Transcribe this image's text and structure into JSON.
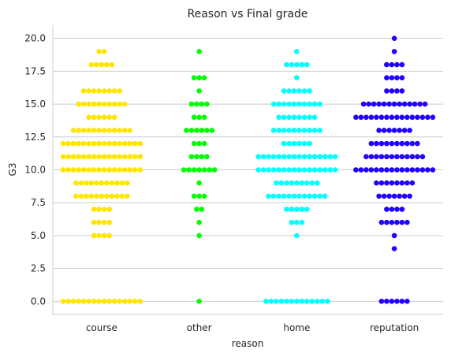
{
  "chart_data": {
    "type": "swarm",
    "title": "Reason vs Final grade",
    "xlabel": "reason",
    "ylabel": "G3",
    "ylim": [
      -1,
      21
    ],
    "yticks": [
      "0.0",
      "2.5",
      "5.0",
      "7.5",
      "10.0",
      "12.5",
      "15.0",
      "17.5",
      "20.0"
    ],
    "grid": "horizontal",
    "categories": [
      "course",
      "other",
      "home",
      "reputation"
    ],
    "colors": [
      "#ffe500",
      "#00ff00",
      "#00ffff",
      "#2000ff"
    ],
    "series": [
      {
        "category": "course",
        "counts": [
          [
            0,
            16
          ],
          [
            5,
            4
          ],
          [
            6,
            4
          ],
          [
            7,
            4
          ],
          [
            8,
            11
          ],
          [
            9,
            11
          ],
          [
            10,
            16
          ],
          [
            11,
            16
          ],
          [
            12,
            16
          ],
          [
            13,
            12
          ],
          [
            14,
            6
          ],
          [
            15,
            10
          ],
          [
            16,
            8
          ],
          [
            18,
            5
          ],
          [
            19,
            2
          ]
        ]
      },
      {
        "category": "other",
        "counts": [
          [
            0,
            1
          ],
          [
            5,
            1
          ],
          [
            6,
            1
          ],
          [
            7,
            2
          ],
          [
            8,
            3
          ],
          [
            9,
            1
          ],
          [
            10,
            7
          ],
          [
            11,
            4
          ],
          [
            12,
            3
          ],
          [
            13,
            6
          ],
          [
            14,
            3
          ],
          [
            15,
            4
          ],
          [
            16,
            1
          ],
          [
            17,
            3
          ],
          [
            19,
            1
          ]
        ]
      },
      {
        "category": "home",
        "counts": [
          [
            0,
            13
          ],
          [
            5,
            1
          ],
          [
            6,
            3
          ],
          [
            7,
            5
          ],
          [
            8,
            12
          ],
          [
            9,
            9
          ],
          [
            10,
            16
          ],
          [
            11,
            16
          ],
          [
            12,
            6
          ],
          [
            13,
            10
          ],
          [
            14,
            8
          ],
          [
            15,
            10
          ],
          [
            16,
            6
          ],
          [
            17,
            1
          ],
          [
            18,
            5
          ],
          [
            19,
            1
          ]
        ]
      },
      {
        "category": "reputation",
        "counts": [
          [
            0,
            6
          ],
          [
            4,
            1
          ],
          [
            5,
            1
          ],
          [
            6,
            6
          ],
          [
            7,
            4
          ],
          [
            8,
            7
          ],
          [
            9,
            8
          ],
          [
            10,
            16
          ],
          [
            11,
            12
          ],
          [
            12,
            10
          ],
          [
            13,
            7
          ],
          [
            14,
            16
          ],
          [
            15,
            13
          ],
          [
            16,
            4
          ],
          [
            17,
            4
          ],
          [
            18,
            4
          ],
          [
            19,
            1
          ],
          [
            20,
            1
          ]
        ]
      }
    ]
  }
}
